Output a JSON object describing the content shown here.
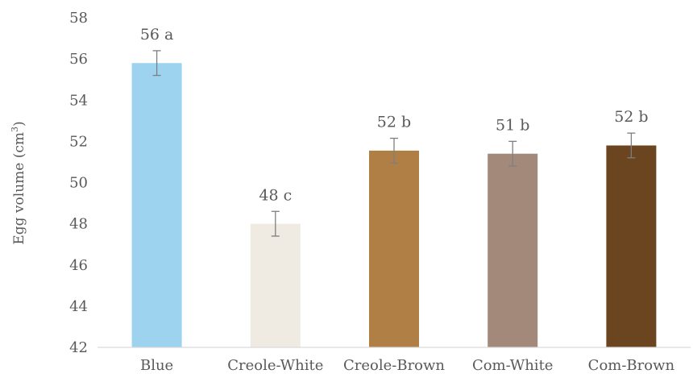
{
  "chart_data": {
    "type": "bar",
    "title": "",
    "xlabel": "",
    "ylabel": "Egg volume (cm",
    "ylabel_superscript": "3",
    "ylabel_suffix": ")",
    "ylim": [
      42,
      58
    ],
    "yticks": [
      42,
      44,
      46,
      48,
      50,
      52,
      54,
      56,
      58
    ],
    "grid": false,
    "legend": "none",
    "categories": [
      "Blue",
      "Creole-White",
      "Creole-Brown",
      "Com-White",
      "Com-Brown"
    ],
    "values": [
      55.8,
      48.0,
      51.55,
      51.4,
      51.8
    ],
    "error": [
      0.6,
      0.6,
      0.6,
      0.6,
      0.6
    ],
    "data_labels": [
      "56 a",
      "48 c",
      "52 b",
      "51 b",
      "52 b"
    ],
    "colors": [
      "#9ed3f0",
      "#efebe3",
      "#b07f45",
      "#a3897a",
      "#6b4420"
    ],
    "axis_color": "#d9d9d9",
    "error_bar_color": "#7f7f7f"
  }
}
